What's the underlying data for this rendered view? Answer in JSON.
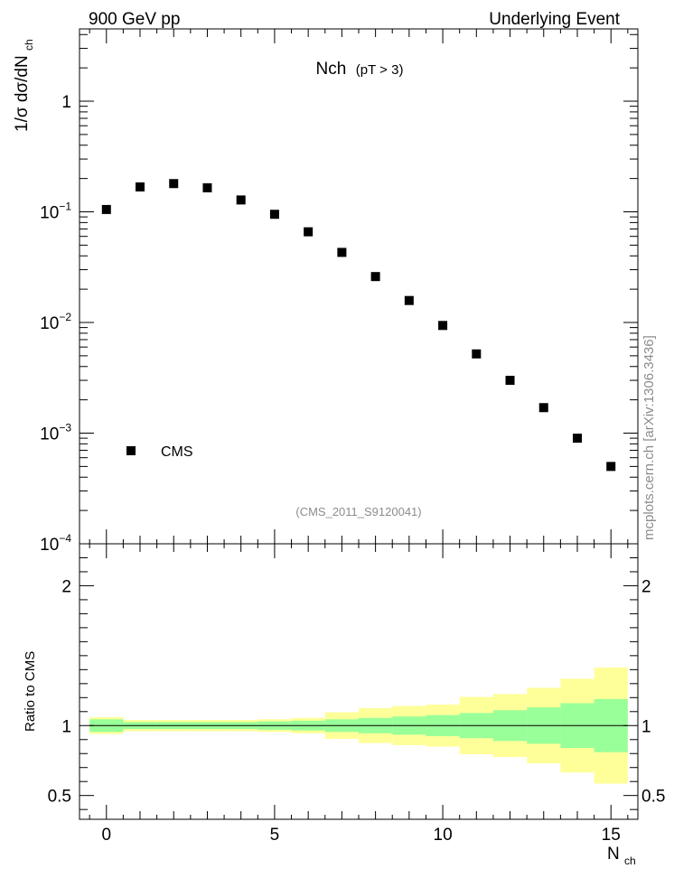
{
  "chart_data": {
    "type": "scatter",
    "header_left": "900 GeV pp",
    "header_right": "Underlying Event",
    "title": "Nch",
    "title_cut": "(pT >  3)",
    "ylabel": "1/σ dσ/dN",
    "ylabel_sub": "ch",
    "xlabel": "N",
    "xlabel_sub": "ch",
    "analysis_tag": "(CMS_2011_S9120041)",
    "side_label": "mcplots.cern.ch [arXiv:1306.3436]",
    "legend": {
      "entries": [
        "CMS"
      ],
      "position": "bottom-left"
    },
    "xlim": [
      -0.8,
      15.8
    ],
    "ylim": [
      0.0001,
      4.5
    ],
    "ylog": true,
    "x_ticks": [
      "0",
      "5",
      "10",
      "15"
    ],
    "y_tick_labels": [
      {
        "base": "10",
        "exp": "−4"
      },
      {
        "base": "10",
        "exp": "−3"
      },
      {
        "base": "10",
        "exp": "−2"
      },
      {
        "base": "10",
        "exp": "−1"
      },
      {
        "base": "1",
        "exp": ""
      }
    ],
    "series": [
      {
        "name": "CMS",
        "x": [
          0,
          1,
          2,
          3,
          4,
          5,
          6,
          7,
          8,
          9,
          10,
          11,
          12,
          13,
          14,
          15
        ],
        "y": [
          0.105,
          0.168,
          0.18,
          0.165,
          0.128,
          0.095,
          0.066,
          0.043,
          0.026,
          0.0158,
          0.0094,
          0.0052,
          0.003,
          0.0017,
          0.0009,
          0.0005
        ]
      }
    ],
    "ratio": {
      "ylabel": "Ratio to CMS",
      "ylim": [
        0.33,
        2.3
      ],
      "y_ticks": [
        "0.5",
        "1",
        "2"
      ],
      "reference": 1,
      "bins": [
        -0.5,
        0.5,
        1.5,
        2.5,
        3.5,
        4.5,
        5.5,
        6.5,
        7.5,
        8.5,
        9.5,
        10.5,
        11.5,
        12.5,
        13.5,
        14.5,
        15.5
      ],
      "stat_band_lo": [
        0.955,
        0.975,
        0.975,
        0.975,
        0.975,
        0.97,
        0.965,
        0.955,
        0.945,
        0.935,
        0.925,
        0.91,
        0.89,
        0.87,
        0.84,
        0.81
      ],
      "stat_band_hi": [
        1.045,
        1.025,
        1.025,
        1.025,
        1.025,
        1.03,
        1.035,
        1.045,
        1.055,
        1.065,
        1.075,
        1.09,
        1.11,
        1.13,
        1.16,
        1.19
      ],
      "total_band_lo": [
        0.94,
        0.96,
        0.96,
        0.96,
        0.96,
        0.955,
        0.945,
        0.905,
        0.875,
        0.86,
        0.85,
        0.795,
        0.775,
        0.73,
        0.665,
        0.585
      ],
      "total_band_hi": [
        1.06,
        1.04,
        1.04,
        1.04,
        1.04,
        1.045,
        1.055,
        1.095,
        1.125,
        1.14,
        1.15,
        1.205,
        1.225,
        1.27,
        1.335,
        1.415
      ]
    },
    "colors": {
      "stat_band": "#99ff99",
      "total_band": "#ffff99",
      "marker": "#000000",
      "axis": "#000000",
      "tag_text": "#8c8c8c"
    }
  }
}
